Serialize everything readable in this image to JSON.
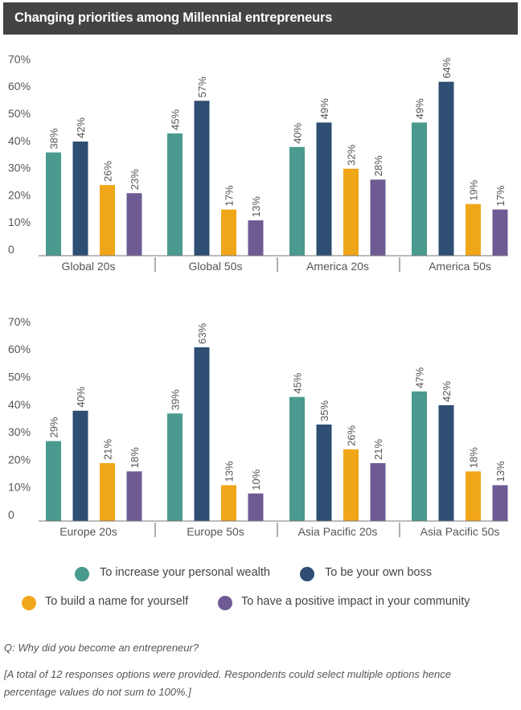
{
  "title": "Changing priorities among Millennial entrepreneurs",
  "legend": [
    {
      "label": "To increase your personal wealth",
      "color": "#4a9a8f"
    },
    {
      "label": "To be your own boss",
      "color": "#2f4e73"
    },
    {
      "label": "To build a name for yourself",
      "color": "#f0a619"
    },
    {
      "label": "To have a positive impact in your community",
      "color": "#6e5b94"
    }
  ],
  "question": "Q: Why did you become an entrepreneur?",
  "footnote_line1": "[A total of 12 responses options were provided. Respondents could select multiple options hence",
  "footnote_line2": "percentage values do not sum to 100%.]",
  "chart_data": [
    {
      "type": "bar",
      "ylim": [
        0,
        70
      ],
      "yticks": [
        "0",
        "10%",
        "20%",
        "30%",
        "40%",
        "50%",
        "60%",
        "70%"
      ],
      "categories": [
        "Global 20s",
        "Global 50s",
        "America 20s",
        "America 50s"
      ],
      "series": [
        {
          "name": "To increase your personal wealth",
          "values": [
            38,
            45,
            40,
            49
          ]
        },
        {
          "name": "To be your own boss",
          "values": [
            42,
            57,
            49,
            64
          ]
        },
        {
          "name": "To build a name for yourself",
          "values": [
            26,
            17,
            32,
            19
          ]
        },
        {
          "name": "To have a positive impact in your community",
          "values": [
            23,
            13,
            28,
            17
          ]
        }
      ]
    },
    {
      "type": "bar",
      "ylim": [
        0,
        70
      ],
      "yticks": [
        "0",
        "10%",
        "20%",
        "30%",
        "40%",
        "50%",
        "60%",
        "70%"
      ],
      "categories": [
        "Europe 20s",
        "Europe 50s",
        "Asia Pacific 20s",
        "Asia Pacific 50s"
      ],
      "series": [
        {
          "name": "To increase your personal wealth",
          "values": [
            29,
            39,
            45,
            47
          ]
        },
        {
          "name": "To be your own boss",
          "values": [
            40,
            63,
            35,
            42
          ]
        },
        {
          "name": "To build a name for yourself",
          "values": [
            21,
            13,
            26,
            18
          ]
        },
        {
          "name": "To have a positive impact in your community",
          "values": [
            18,
            10,
            21,
            13
          ]
        }
      ]
    }
  ]
}
